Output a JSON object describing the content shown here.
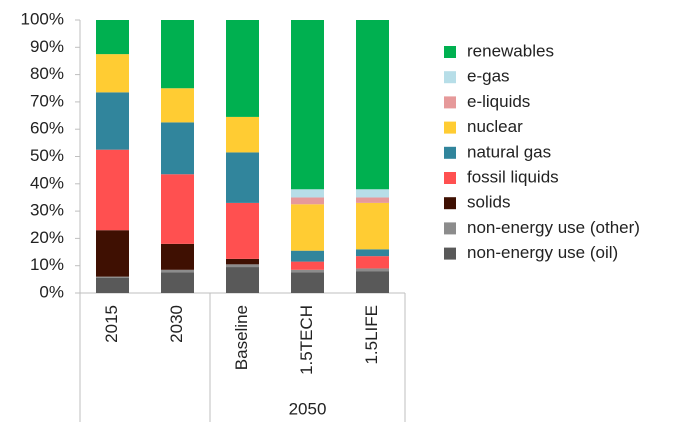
{
  "chart_data": {
    "type": "stacked_bar",
    "categories": [
      "2015",
      "2030",
      "Baseline",
      "1.5TECH",
      "1.5LIFE"
    ],
    "category_groups": [
      {
        "label": "2050",
        "from": 2,
        "to": 4
      }
    ],
    "series": [
      {
        "name": "non-energy use (oil)",
        "color": "#595959",
        "values": [
          5.5,
          7.5,
          9.5,
          7.5,
          8
        ]
      },
      {
        "name": "non-energy use (other)",
        "color": "#8c8c8c",
        "values": [
          0.5,
          1,
          1,
          1,
          1
        ]
      },
      {
        "name": "solids",
        "color": "#3f1002",
        "values": [
          17,
          9.5,
          2,
          0,
          0
        ]
      },
      {
        "name": "fossil liquids",
        "color": "#ff5050",
        "values": [
          29.5,
          25.5,
          20.5,
          3,
          4.5
        ]
      },
      {
        "name": "natural gas",
        "color": "#31859c",
        "values": [
          21,
          19,
          18.5,
          4,
          2.5
        ]
      },
      {
        "name": "nuclear",
        "color": "#ffcc33",
        "values": [
          14,
          12.5,
          13,
          17,
          17
        ]
      },
      {
        "name": "e-liquids",
        "color": "#e6999a",
        "values": [
          0,
          0,
          0,
          2.5,
          2
        ]
      },
      {
        "name": "e-gas",
        "color": "#b7dee8",
        "values": [
          0,
          0,
          0,
          3,
          3
        ]
      },
      {
        "name": "renewables",
        "color": "#00b050",
        "values": [
          12.5,
          25,
          35.5,
          62,
          62
        ]
      }
    ],
    "ylim": [
      0,
      100
    ],
    "yticks": [
      {
        "value": 0,
        "label": "0%"
      },
      {
        "value": 10,
        "label": "10%"
      },
      {
        "value": 20,
        "label": "20%"
      },
      {
        "value": 30,
        "label": "30%"
      },
      {
        "value": 40,
        "label": "40%"
      },
      {
        "value": 50,
        "label": "50%"
      },
      {
        "value": 60,
        "label": "60%"
      },
      {
        "value": 70,
        "label": "70%"
      },
      {
        "value": 80,
        "label": "80%"
      },
      {
        "value": 90,
        "label": "90%"
      },
      {
        "value": 100,
        "label": "100%"
      }
    ],
    "grid": false,
    "legend": "right"
  }
}
